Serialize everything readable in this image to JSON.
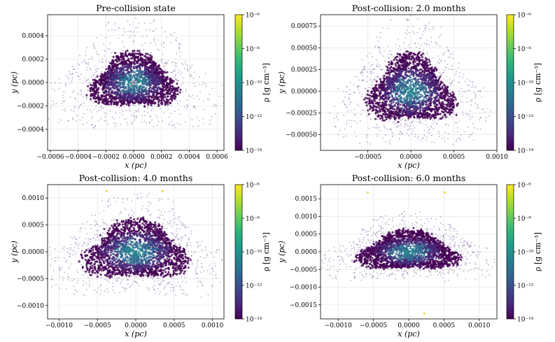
{
  "figure": {
    "colorbar_label": "ρ [g cm⁻³]"
  },
  "chart_data": [
    {
      "type": "scatter",
      "title": "Pre-collision state",
      "xlabel": "x (pc)",
      "ylabel": "y (pc)",
      "xlim": [
        -0.00062,
        0.00065
      ],
      "ylim": [
        -0.00058,
        0.00058
      ],
      "xticks": [
        -0.0006,
        -0.0004,
        -0.0002,
        0.0,
        0.0002,
        0.0004,
        0.0006
      ],
      "xtick_labels": [
        "−0.0006",
        "−0.0004",
        "−0.0002",
        "0.0000",
        "0.0002",
        "0.0004",
        "0.0006"
      ],
      "yticks": [
        -0.0004,
        -0.0002,
        0.0,
        0.0002,
        0.0004
      ],
      "ytick_labels": [
        "−0.0004",
        "−0.0002",
        "0.0000",
        "0.0002",
        "0.0004"
      ],
      "grid": true,
      "cloud": {
        "center": [
          0.0,
          0.0
        ],
        "rx": 0.00029,
        "ry": 0.00022,
        "halo_scale": 2.1
      },
      "markers": [
        {
          "x": 0.0,
          "y": 0.0,
          "shape": "star",
          "color": "#f4a6c8"
        }
      ],
      "colorbar": {
        "label": "ρ [g cm⁻³]",
        "range_log10": [
          -14,
          -6
        ],
        "ticks": [
          -6,
          -8,
          -10,
          -12,
          -14
        ],
        "tick_labels": [
          "10⁻⁶",
          "10⁻⁸",
          "10⁻¹⁰",
          "10⁻¹²",
          "10⁻¹⁴"
        ]
      }
    },
    {
      "type": "scatter",
      "title": "Post-collision: 2.0 months",
      "xlabel": "x (pc)",
      "ylabel": "y (pc)",
      "xlim": [
        -0.00105,
        0.001
      ],
      "ylim": [
        -0.00068,
        0.00088
      ],
      "xticks": [
        -0.0005,
        0.0,
        0.0005,
        0.001
      ],
      "xtick_labels": [
        "−0.0005",
        "0.0000",
        "0.0005",
        "0.0010"
      ],
      "yticks": [
        -0.0005,
        -0.00025,
        0.0,
        0.00025,
        0.0005,
        0.00075
      ],
      "ytick_labels": [
        "−0.00050",
        "−0.00025",
        "0.00000",
        "0.00025",
        "0.00050",
        "0.00075"
      ],
      "grid": true,
      "cloud": {
        "center": [
          0.0,
          0.0
        ],
        "rx": 0.00046,
        "ry": 0.00037,
        "halo_scale": 1.9
      },
      "markers": [],
      "colorbar": {
        "label": "ρ [g cm⁻³]",
        "range_log10": [
          -14,
          -6
        ],
        "ticks": [
          -6,
          -8,
          -10,
          -12,
          -14
        ],
        "tick_labels": [
          "10⁻⁶",
          "10⁻⁸",
          "10⁻¹⁰",
          "10⁻¹²",
          "10⁻¹⁴"
        ]
      }
    },
    {
      "type": "scatter",
      "title": "Post-collision: 4.0 months",
      "xlabel": "x (pc)",
      "ylabel": "y (pc)",
      "xlim": [
        -0.00115,
        0.00115
      ],
      "ylim": [
        -0.00125,
        0.00125
      ],
      "xticks": [
        -0.001,
        -0.0005,
        0.0,
        0.0005,
        0.001
      ],
      "xtick_labels": [
        "−0.0010",
        "−0.0005",
        "0.0000",
        "0.0005",
        "0.0010"
      ],
      "yticks": [
        -0.001,
        -0.0005,
        0.0,
        0.0005,
        0.001
      ],
      "ytick_labels": [
        "−0.0010",
        "−0.0005",
        "0.0000",
        "0.0005",
        "0.0010"
      ],
      "grid": true,
      "cloud": {
        "center": [
          0.0,
          0.0
        ],
        "rx": 0.00062,
        "ry": 0.00052,
        "halo_scale": 1.8
      },
      "markers": [
        {
          "x": -0.00038,
          "y": 0.00113,
          "shape": "dot",
          "color": "#e7d21c"
        },
        {
          "x": 0.00035,
          "y": 0.00113,
          "shape": "dot",
          "color": "#e7d21c"
        }
      ],
      "colorbar": {
        "label": "ρ [g cm⁻³]",
        "range_log10": [
          -14,
          -6
        ],
        "ticks": [
          -6,
          -8,
          -10,
          -12,
          -14
        ],
        "tick_labels": [
          "10⁻⁶",
          "10⁻⁸",
          "10⁻¹⁰",
          "10⁻¹²",
          "10⁻¹⁴"
        ]
      }
    },
    {
      "type": "scatter",
      "title": "Post-collision: 6.0 months",
      "xlabel": "x (pc)",
      "ylabel": "y (pc)",
      "xlim": [
        -0.00125,
        0.00125
      ],
      "ylim": [
        -0.0019,
        0.0019
      ],
      "xticks": [
        -0.001,
        -0.0005,
        0.0,
        0.0005,
        0.001
      ],
      "xtick_labels": [
        "−0.0010",
        "−0.0005",
        "0.0000",
        "0.0005",
        "0.0010"
      ],
      "yticks": [
        -0.0015,
        -0.001,
        -0.0005,
        0.0,
        0.0005,
        0.001,
        0.0015
      ],
      "ytick_labels": [
        "−0.0015",
        "−0.0010",
        "−0.0005",
        "0.0000",
        "0.0005",
        "0.0010",
        "0.0015"
      ],
      "grid": true,
      "cloud": {
        "center": [
          0.0,
          0.0
        ],
        "rx": 0.00065,
        "ry": 0.00052,
        "halo_scale": 1.8
      },
      "markers": [
        {
          "x": -0.00058,
          "y": 0.00168,
          "shape": "dot",
          "color": "#e7d21c"
        },
        {
          "x": 0.00051,
          "y": 0.00168,
          "shape": "dot",
          "color": "#e7d21c"
        },
        {
          "x": 0.00022,
          "y": -0.00175,
          "shape": "dot",
          "color": "#e7d21c"
        }
      ],
      "colorbar": {
        "label": "ρ [g cm⁻³]",
        "range_log10": [
          -14,
          -6
        ],
        "ticks": [
          -6,
          -8,
          -10,
          -12,
          -14
        ],
        "tick_labels": [
          "10⁻⁶",
          "10⁻⁸",
          "10⁻¹⁰",
          "10⁻¹²",
          "10⁻¹⁴"
        ]
      }
    }
  ],
  "colors": {
    "viridis": [
      "#440154",
      "#482878",
      "#3e4989",
      "#31688e",
      "#26828e",
      "#1f9e89",
      "#35b779",
      "#6ece58",
      "#b5de2b",
      "#fde725"
    ],
    "grid": "#e4e4e4",
    "axis": "#000000"
  }
}
